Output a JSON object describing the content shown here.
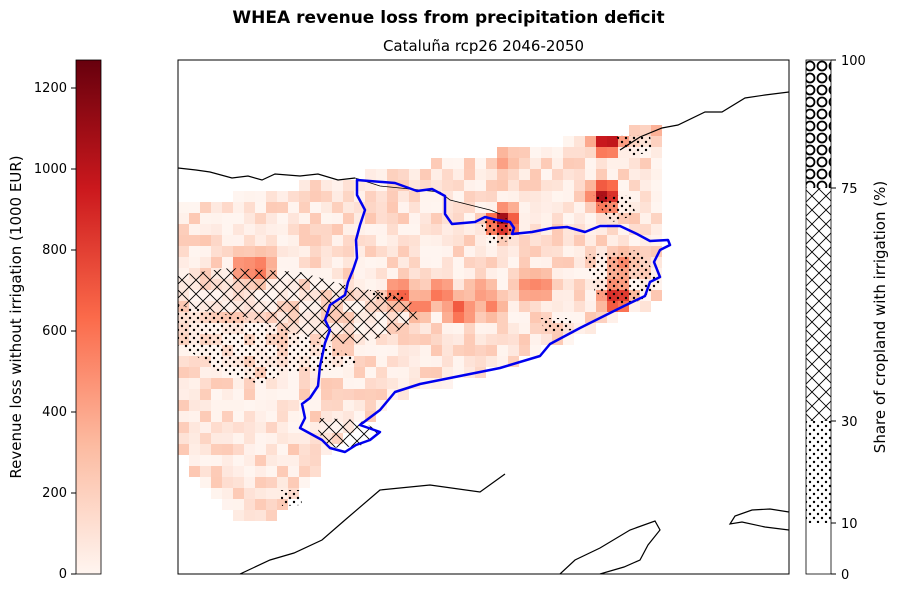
{
  "suptitle": "WHEA revenue loss from precipitation deficit",
  "subtitle": "Cataluña rcp26 2046-2050",
  "left_colorbar": {
    "label": "Revenue loss without irrigation (1000 EUR)",
    "ticks": [
      "0",
      "200",
      "400",
      "600",
      "800",
      "1000",
      "1200"
    ],
    "range": [
      0,
      1270
    ],
    "colormap": "Reds",
    "colors": [
      "#fff5f0",
      "#fcbba1",
      "#fb6a4a",
      "#cb181d",
      "#67000d"
    ]
  },
  "right_colorbar": {
    "label": "Share of cropland with irrigation (%)",
    "ticks": [
      "0",
      "10",
      "30",
      "75",
      "100"
    ],
    "bands": [
      {
        "range": [
          0,
          10
        ],
        "hatch": "none"
      },
      {
        "range": [
          10,
          30
        ],
        "hatch": "dots"
      },
      {
        "range": [
          30,
          75
        ],
        "hatch": "crosshatch"
      },
      {
        "range": [
          75,
          100
        ],
        "hatch": "circles"
      }
    ]
  },
  "map": {
    "region_outline_color": "#0000ee",
    "coastline_color": "#000000"
  }
}
